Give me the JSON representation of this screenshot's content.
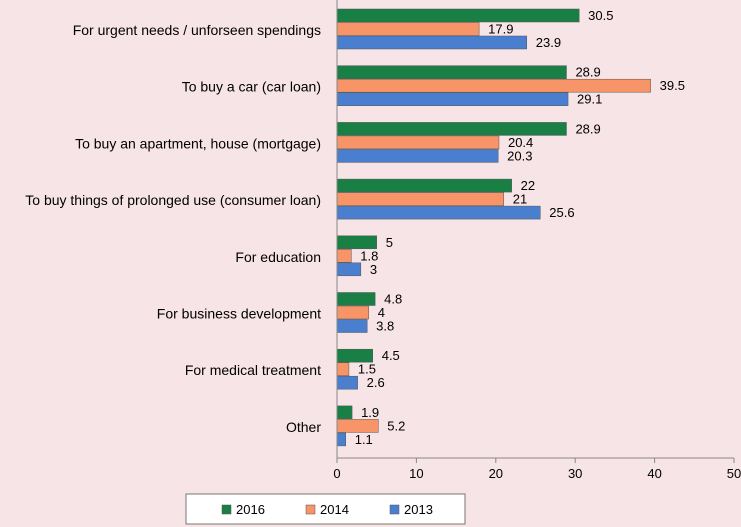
{
  "chart_data": {
    "type": "bar",
    "orientation": "horizontal",
    "categories": [
      "For urgent needs / unforseen spendings",
      "To buy a car (car loan)",
      "To buy an apartment, house (mortgage)",
      "To buy things of prolonged use (consumer loan)",
      "For education",
      "For business development",
      "For medical treatment",
      "Other"
    ],
    "series": [
      {
        "name": "2016",
        "color": "#1a7f45",
        "values": [
          30.5,
          28.9,
          28.9,
          22,
          5,
          4.8,
          4.5,
          1.9
        ]
      },
      {
        "name": "2014",
        "color": "#f79468",
        "values": [
          17.9,
          39.5,
          20.4,
          21,
          1.8,
          4,
          1.5,
          5.2
        ]
      },
      {
        "name": "2013",
        "color": "#4a7fcf",
        "values": [
          23.9,
          29.1,
          20.3,
          25.6,
          3,
          3.8,
          2.6,
          1.1
        ]
      }
    ],
    "value_labels": [
      [
        "30.5",
        "28.9",
        "28.9",
        "22",
        "5",
        "4.8",
        "4.5",
        "1.9"
      ],
      [
        "17.9",
        "39.5",
        "20.4",
        "21",
        "1.8",
        "4",
        "1.5",
        "5.2"
      ],
      [
        "23.9",
        "29.1",
        "20.3",
        "25.6",
        "3",
        "3.8",
        "2.6",
        "1.1"
      ]
    ],
    "xlim": [
      0,
      50
    ],
    "xticks": [
      0,
      10,
      20,
      30,
      40,
      50
    ],
    "grid": false,
    "legend": {
      "position": "bottom",
      "entries": [
        "2016",
        "2014",
        "2013"
      ]
    },
    "title": "",
    "xlabel": "",
    "ylabel": ""
  }
}
